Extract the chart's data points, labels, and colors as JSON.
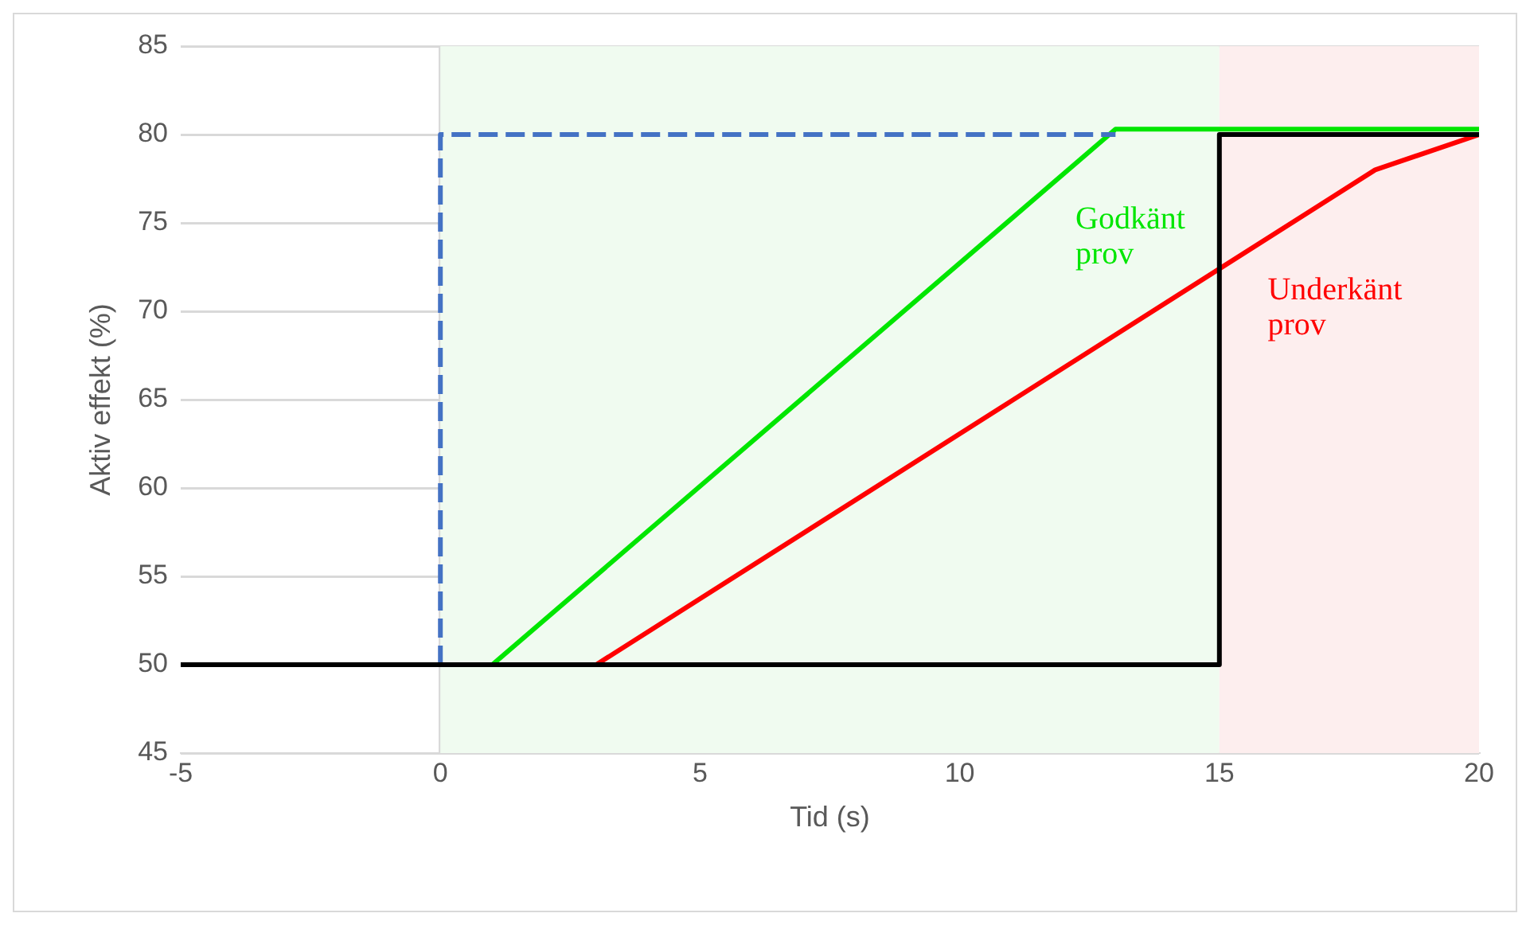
{
  "chart_data": {
    "type": "line",
    "xlabel": "Tid (s)",
    "ylabel": "Aktiv effekt (%)",
    "xlim": [
      -5,
      20
    ],
    "xticks": [
      -5,
      0,
      5,
      10,
      15,
      20
    ],
    "ylim": [
      45,
      85
    ],
    "yticks": [
      45,
      50,
      55,
      60,
      65,
      70,
      75,
      80,
      85
    ],
    "grid": "y",
    "legend": false,
    "marker": "none",
    "series": [
      {
        "color": "#000000",
        "x": [
          -5,
          15,
          15,
          20
        ],
        "values": [
          50,
          50,
          80,
          80
        ]
      },
      {
        "color": "#4472c4",
        "x": [
          0,
          0,
          13
        ],
        "values": [
          50,
          80,
          80
        ],
        "line_style": "dashed"
      },
      {
        "color": "#00e600",
        "x": [
          1,
          13,
          20
        ],
        "values": [
          50,
          80.3,
          80.3
        ]
      },
      {
        "color": "#ff0000",
        "x": [
          3,
          18,
          20
        ],
        "values": [
          50,
          78,
          80
        ]
      }
    ],
    "bands": [
      {
        "axis": "x",
        "from": 0,
        "to": 15,
        "color": "#f0fbf0"
      },
      {
        "axis": "x",
        "from": 15,
        "to": 20,
        "color": "#fdeeee"
      }
    ],
    "annotations": [
      {
        "text": "Godkänt\nprov",
        "x": 11.8,
        "y": 77.3
      },
      {
        "text": "Underkänt\nprov",
        "x": 15.5,
        "y": 73.3
      }
    ]
  }
}
